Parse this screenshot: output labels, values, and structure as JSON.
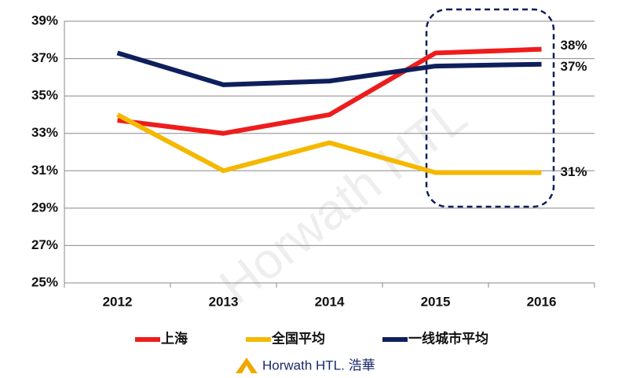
{
  "chart_data": {
    "type": "line",
    "categories": [
      "2012",
      "2013",
      "2014",
      "2015",
      "2016"
    ],
    "series": [
      {
        "name": "上海",
        "color": "#ee1c1c",
        "values": [
          33.7,
          33.0,
          34.0,
          37.3,
          37.5
        ],
        "value_labels": [
          null,
          null,
          null,
          null,
          "38%"
        ]
      },
      {
        "name": "全国平均",
        "color": "#f5b800",
        "values": [
          34.0,
          31.0,
          32.5,
          30.9,
          30.9
        ],
        "value_labels": [
          null,
          null,
          null,
          null,
          "31%"
        ]
      },
      {
        "name": "一线城市平均",
        "color": "#0f1f5c",
        "values": [
          37.3,
          35.6,
          35.8,
          36.6,
          36.7
        ],
        "value_labels": [
          null,
          null,
          null,
          null,
          "37%"
        ]
      }
    ],
    "ylim": [
      25,
      39
    ],
    "yticks": [
      {
        "value": 25,
        "label": "25%"
      },
      {
        "value": 27,
        "label": "27%"
      },
      {
        "value": 29,
        "label": "29%"
      },
      {
        "value": 31,
        "label": "31%"
      },
      {
        "value": 33,
        "label": "33%"
      },
      {
        "value": 35,
        "label": "35%"
      },
      {
        "value": 37,
        "label": "37%"
      },
      {
        "value": 39,
        "label": "39%"
      }
    ],
    "grid": true,
    "watermark": "Horwath HTL",
    "footer": "Horwath HTL. 浩華"
  }
}
